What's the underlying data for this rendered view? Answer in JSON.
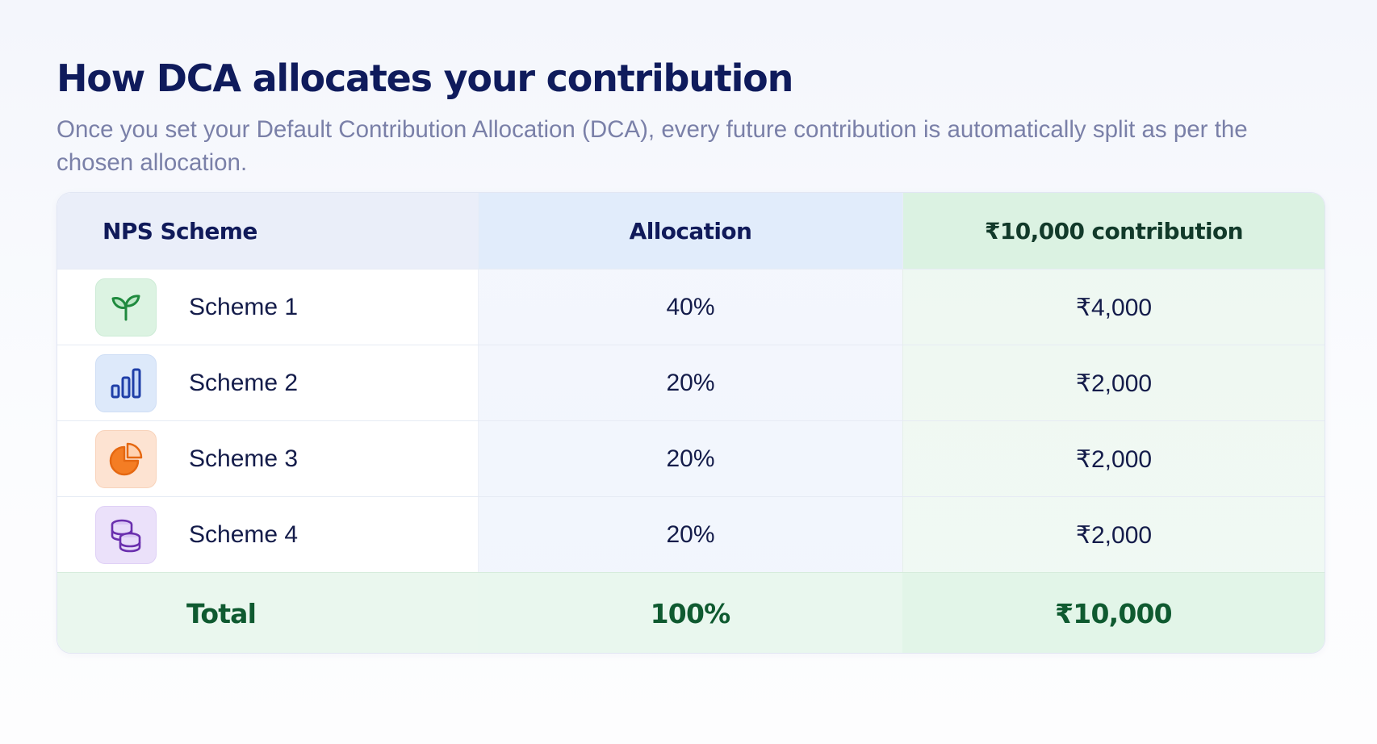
{
  "page": {
    "title": "How DCA allocates your contribution",
    "subtitle": "Once you set your Default Contribution Allocation (DCA), every future contribution is automatically split as per the chosen allocation."
  },
  "table": {
    "headers": {
      "scheme": "NPS Scheme",
      "allocation": "Allocation",
      "contribution": "₹10,000 contribution"
    },
    "rows": [
      {
        "icon": "sprout-icon",
        "icon_color": "#1f8a3e",
        "scheme": "Scheme 1",
        "allocation": "40%",
        "amount": "₹4,000"
      },
      {
        "icon": "bar-chart-icon",
        "icon_color": "#1f3fa8",
        "scheme": "Scheme 2",
        "allocation": "20%",
        "amount": "₹2,000"
      },
      {
        "icon": "pie-chart-icon",
        "icon_color": "#f07a20",
        "scheme": "Scheme 3",
        "allocation": "20%",
        "amount": "₹2,000"
      },
      {
        "icon": "coin-stack-icon",
        "icon_color": "#6a2fae",
        "scheme": "Scheme 4",
        "allocation": "20%",
        "amount": "₹2,000"
      }
    ],
    "total": {
      "label": "Total",
      "allocation": "100%",
      "amount": "₹10,000"
    }
  },
  "colors": {
    "title": "#0f1b5c",
    "subtitle": "#7a80a8",
    "total_text": "#0f5a30",
    "header_allocation_bg": "#e1ecfb",
    "header_contribution_bg": "#dbf2e2"
  }
}
